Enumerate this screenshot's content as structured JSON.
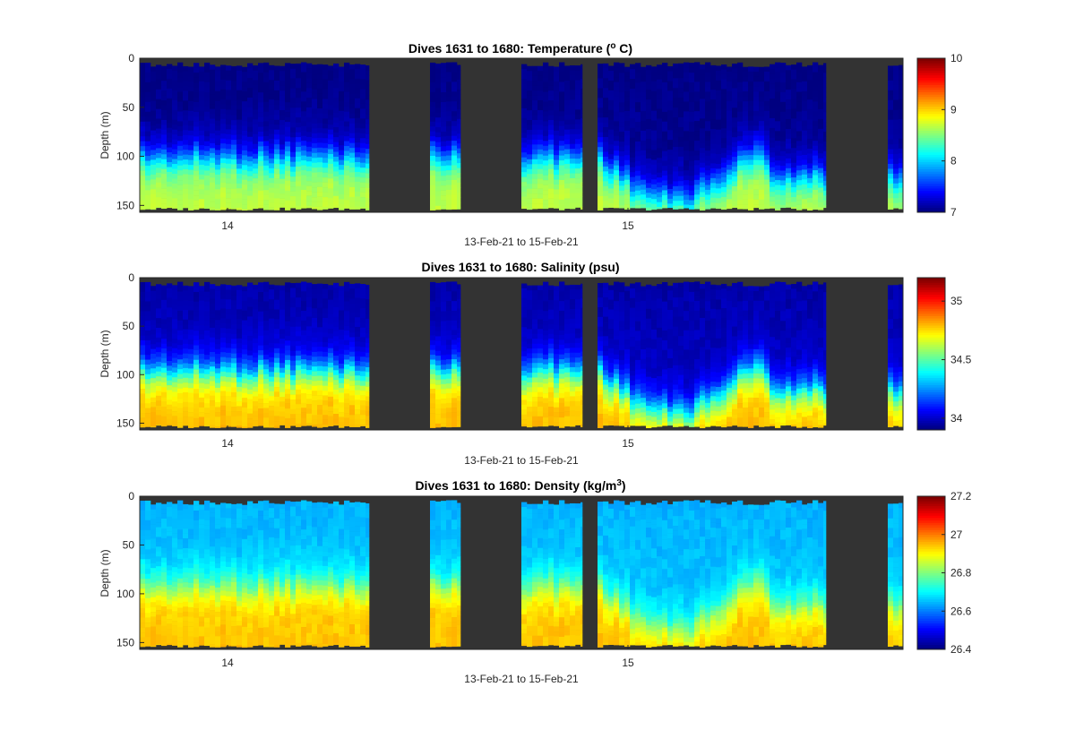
{
  "chart_data": [
    {
      "type": "heatmap",
      "title": "Dives 1631 to 1680: Temperature (",
      "title_sup": "o",
      "title_suffix": " C)",
      "xlabel": "13-Feb-21 to 15-Feb-21",
      "ylabel": "Depth (m)",
      "x_ticks": [
        "14",
        "15"
      ],
      "y_ticks": [
        0,
        50,
        100,
        150
      ],
      "ylim": [
        0,
        157
      ],
      "colorbar": {
        "min": 7,
        "max": 10,
        "ticks": [
          "7",
          "8",
          "9",
          "10"
        ],
        "colormap": "jet"
      },
      "surface_value": 7.0,
      "deep_value": 8.6,
      "shallow_thermocline_depth": 100,
      "deep_thermocline_depth": 142
    },
    {
      "type": "heatmap",
      "title": "Dives 1631 to 1680: Salinity (psu)",
      "title_sup": "",
      "title_suffix": "",
      "xlabel": "13-Feb-21 to 15-Feb-21",
      "ylabel": "Depth (m)",
      "x_ticks": [
        "14",
        "15"
      ],
      "y_ticks": [
        0,
        50,
        100,
        150
      ],
      "ylim": [
        0,
        157
      ],
      "colorbar": {
        "min": 33.9,
        "max": 35.2,
        "ticks": [
          "34",
          "34.5",
          "35"
        ],
        "colormap": "jet"
      },
      "surface_value": 33.95,
      "deep_value": 34.75,
      "shallow_thermocline_depth": 95,
      "deep_thermocline_depth": 138
    },
    {
      "type": "heatmap",
      "title": "Dives 1631 to 1680: Density (kg/m",
      "title_sup": "3",
      "title_suffix": ")",
      "xlabel": "13-Feb-21 to 15-Feb-21",
      "ylabel": "Depth (m)",
      "x_ticks": [
        "14",
        "15"
      ],
      "y_ticks": [
        0,
        50,
        100,
        150
      ],
      "ylim": [
        0,
        157
      ],
      "colorbar": {
        "min": 26.4,
        "max": 27.2,
        "ticks": [
          "26.4",
          "26.6",
          "26.8",
          "27",
          "27.2"
        ],
        "colormap": "jet"
      },
      "surface_value": 26.64,
      "deep_value": 26.93,
      "shallow_thermocline_depth": 90,
      "deep_thermocline_depth": 135
    }
  ],
  "colors": {
    "missing_data": "#333333",
    "axis": "#262626",
    "background": "#ffffff"
  }
}
